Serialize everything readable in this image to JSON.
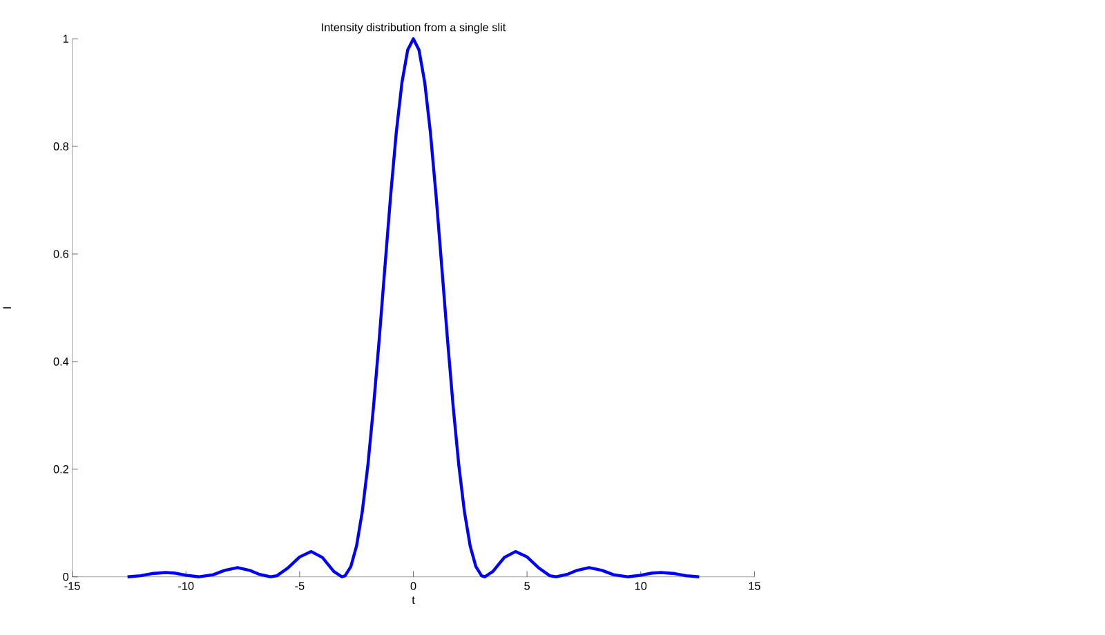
{
  "chart_data": {
    "type": "line",
    "title": "Intensity distribution from a single slit",
    "xlabel": "t",
    "ylabel": "I",
    "series": [
      {
        "color": "#0000ff",
        "x": [
          -12.57,
          -12,
          -11.5,
          -10.9,
          -10.5,
          -10,
          -9.42,
          -8.8,
          -8.3,
          -7.73,
          -7.2,
          -6.8,
          -6.28,
          -6,
          -5.5,
          -5,
          -4.49,
          -4,
          -3.5,
          -3.14,
          -3,
          -2.75,
          -2.5,
          -2.25,
          -2,
          -1.75,
          -1.5,
          -1.25,
          -1,
          -0.75,
          -0.5,
          -0.25,
          0,
          0.25,
          0.5,
          0.75,
          1,
          1.25,
          1.5,
          1.75,
          2,
          2.25,
          2.5,
          2.75,
          3,
          3.14,
          3.5,
          4,
          4.49,
          5,
          5.5,
          6,
          6.28,
          6.8,
          7.2,
          7.73,
          8.3,
          8.8,
          9.42,
          10,
          10.5,
          10.9,
          11.5,
          12,
          12.57
        ],
        "values": [
          0,
          0.002,
          0.006,
          0.008,
          0.007,
          0.003,
          0,
          0.004,
          0.012,
          0.017,
          0.012,
          0.005,
          0,
          0.002,
          0.017,
          0.037,
          0.047,
          0.036,
          0.01,
          0,
          0.002,
          0.019,
          0.057,
          0.12,
          0.207,
          0.317,
          0.442,
          0.576,
          0.708,
          0.826,
          0.919,
          0.979,
          1,
          0.979,
          0.919,
          0.826,
          0.708,
          0.576,
          0.442,
          0.317,
          0.207,
          0.12,
          0.057,
          0.019,
          0.002,
          0,
          0.01,
          0.036,
          0.047,
          0.037,
          0.017,
          0.002,
          0,
          0.005,
          0.012,
          0.017,
          0.012,
          0.004,
          0,
          0.003,
          0.007,
          0.008,
          0.006,
          0.002,
          0
        ]
      }
    ],
    "xlim": [
      -15,
      15
    ],
    "ylim": [
      0,
      1
    ],
    "xticks": [
      -15,
      -10,
      -5,
      0,
      5,
      10,
      15
    ],
    "yticks": [
      0,
      0.2,
      0.4,
      0.6,
      0.8,
      1
    ],
    "line_style": "solid"
  }
}
